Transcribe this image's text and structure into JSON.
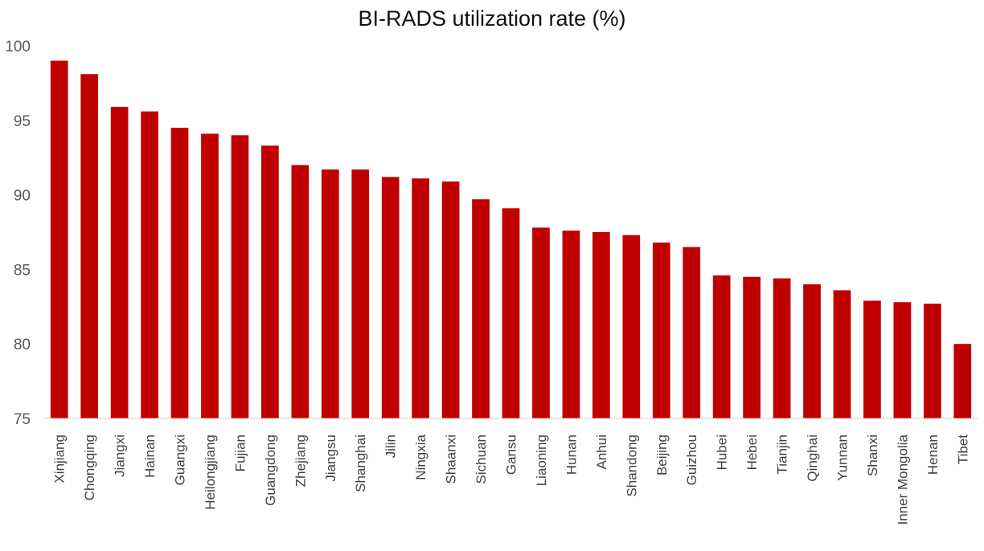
{
  "chart_data": {
    "type": "bar",
    "title": "BI-RADS utilization rate (%)",
    "xlabel": "",
    "ylabel": "",
    "ylim": [
      75,
      100
    ],
    "yticks": [
      75,
      80,
      85,
      90,
      95,
      100
    ],
    "grid": false,
    "bar_color": "#C00000",
    "categories": [
      "Xinjiang",
      "Chongqing",
      "Jiangxi",
      "Hainan",
      "Guangxi",
      "Heilongjiang",
      "Fujian",
      "Guangdong",
      "Zhejiang",
      "Jiangsu",
      "Shanghai",
      "Jilin",
      "Ningxia",
      "Shaanxi",
      "Sichuan",
      "Gansu",
      "Liaoning",
      "Hunan",
      "Anhui",
      "Shandong",
      "Beijing",
      "Guizhou",
      "Hubei",
      "Hebei",
      "Tianjin",
      "Qinghai",
      "Yunnan",
      "Shanxi",
      "Inner Mongolia",
      "Henan",
      "Tibet"
    ],
    "values": [
      99.0,
      98.1,
      95.9,
      95.6,
      94.5,
      94.1,
      94.0,
      93.3,
      92.0,
      91.7,
      91.7,
      91.2,
      91.1,
      90.9,
      89.7,
      89.1,
      87.8,
      87.6,
      87.5,
      87.3,
      86.8,
      86.5,
      84.6,
      84.5,
      84.4,
      84.0,
      83.6,
      82.9,
      82.8,
      82.7,
      80.0
    ]
  }
}
